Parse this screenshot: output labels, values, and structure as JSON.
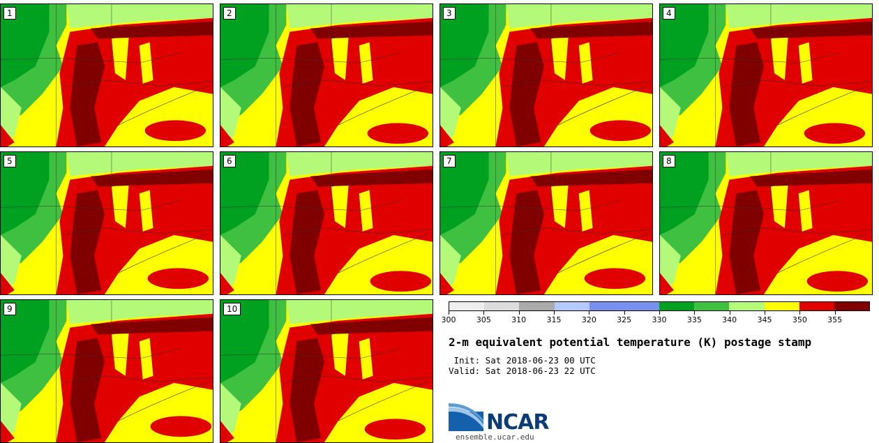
{
  "panels": [
    {
      "label": "1"
    },
    {
      "label": "2"
    },
    {
      "label": "3"
    },
    {
      "label": "4"
    },
    {
      "label": "5"
    },
    {
      "label": "6"
    },
    {
      "label": "7"
    },
    {
      "label": "8"
    },
    {
      "label": "9"
    },
    {
      "label": "10"
    }
  ],
  "colorbar": {
    "colors": [
      "#eeeeee",
      "#dddddd",
      "#aaaaaa",
      "#b4c8fa",
      "#7890f0",
      "#7890f0",
      "#00a020",
      "#40c040",
      "#b4fa78",
      "#ffff00",
      "#e00000",
      "#800000"
    ],
    "boundaries": [
      300,
      305,
      310,
      315,
      320,
      325,
      330,
      335,
      340,
      345,
      350,
      355,
      360
    ],
    "tick_labels": [
      "300",
      "305",
      "310",
      "315",
      "320",
      "325",
      "330",
      "335",
      "340",
      "345",
      "350",
      "355"
    ]
  },
  "title": "2-m equivalent potential temperature (K) postage stamp",
  "init_text": " Init: Sat 2018-06-23 00 UTC",
  "valid_text": "Valid: Sat 2018-06-23 22 UTC",
  "logo": {
    "text": "NCAR",
    "url": "ensemble.ucar.edu"
  },
  "map_colors": {
    "green_dark": "#00a020",
    "green_mid": "#40c040",
    "green_light": "#b4fa78",
    "yellow": "#ffff00",
    "red": "#e00000",
    "dark_red": "#800000"
  }
}
